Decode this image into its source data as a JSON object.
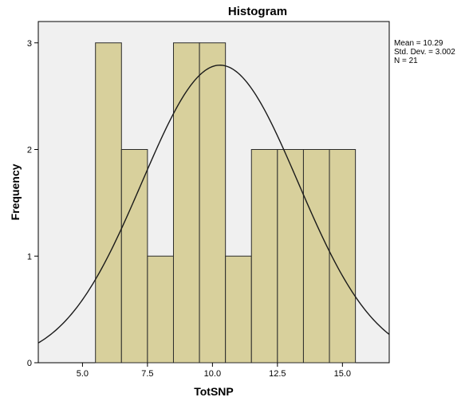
{
  "chart_data": {
    "type": "bar",
    "title": "Histogram",
    "xlabel": "TotSNP",
    "ylabel": "Frequency",
    "xlim": [
      3.3,
      16.8
    ],
    "ylim": [
      0,
      3.2
    ],
    "x_ticks": [
      "5.0",
      "7.5",
      "10.0",
      "12.5",
      "15.0"
    ],
    "x_tick_values": [
      5.0,
      7.5,
      10.0,
      12.5,
      15.0
    ],
    "y_ticks": [
      "0",
      "1",
      "2",
      "3"
    ],
    "y_tick_values": [
      0,
      1,
      2,
      3
    ],
    "bin_width": 1,
    "bins": [
      {
        "start": 5.5,
        "end": 6.5,
        "count": 3
      },
      {
        "start": 6.5,
        "end": 7.5,
        "count": 2
      },
      {
        "start": 7.5,
        "end": 8.5,
        "count": 1
      },
      {
        "start": 8.5,
        "end": 9.5,
        "count": 3
      },
      {
        "start": 9.5,
        "end": 10.5,
        "count": 3
      },
      {
        "start": 10.5,
        "end": 11.5,
        "count": 1
      },
      {
        "start": 11.5,
        "end": 12.5,
        "count": 2
      },
      {
        "start": 12.5,
        "end": 13.5,
        "count": 2
      },
      {
        "start": 13.5,
        "end": 14.5,
        "count": 2
      },
      {
        "start": 14.5,
        "end": 15.5,
        "count": 2
      }
    ],
    "normal_curve": {
      "mean": 10.29,
      "std_dev": 3.002,
      "n": 21
    },
    "stats_lines": [
      "Mean = 10.29",
      "Std. Dev. = 3.002",
      "N = 21"
    ],
    "colors": {
      "bar_fill": "#d8d09c",
      "bar_stroke": "#2b2b2b",
      "plot_bg": "#f0f0f0",
      "curve": "#1a1a1a"
    },
    "grid": false,
    "legend": "none"
  }
}
